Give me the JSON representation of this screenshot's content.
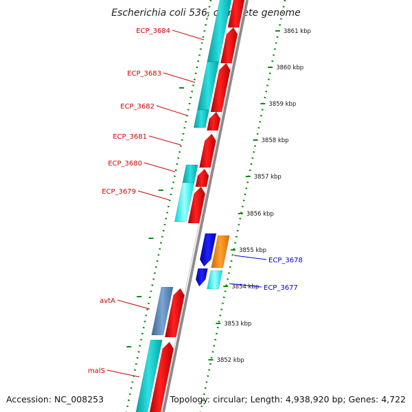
{
  "header": {
    "title": "Escherichia coli 536, complete genome"
  },
  "footer": {
    "accession": "Accession: NC_008253",
    "summary": "Topology: circular; Length: 4,938,920 bp; Genes: 4,722"
  },
  "colors": {
    "forward_cds": "#ff0000",
    "reverse_cds": "#0000ee",
    "forward_teal": "#00c8c8",
    "forward_cyan": "#00ffff",
    "steel_blue": "#4e7fb2",
    "orange": "#ff8c00",
    "backbone": "#8c8c8c",
    "ticks": "#0a8c0a",
    "label_forward": "#cc0000",
    "label_reverse": "#0000cc"
  },
  "kbp_ticks": [
    "3861 kbp",
    "3860 kbp",
    "3859 kbp",
    "3858 kbp",
    "3857 kbp",
    "3856 kbp",
    "3855 kbp",
    "3854 kbp",
    "3853 kbp",
    "3852 kbp"
  ],
  "gene_labels": {
    "ECP_3684": "ECP_3684",
    "ECP_3683": "ECP_3683",
    "ECP_3682": "ECP_3682",
    "ECP_3681": "ECP_3681",
    "ECP_3680": "ECP_3680",
    "ECP_3679": "ECP_3679",
    "ECP_3678": "ECP_3678",
    "ECP_3677": "ECP_3677",
    "avtA": "avtA",
    "malS": "malS"
  }
}
